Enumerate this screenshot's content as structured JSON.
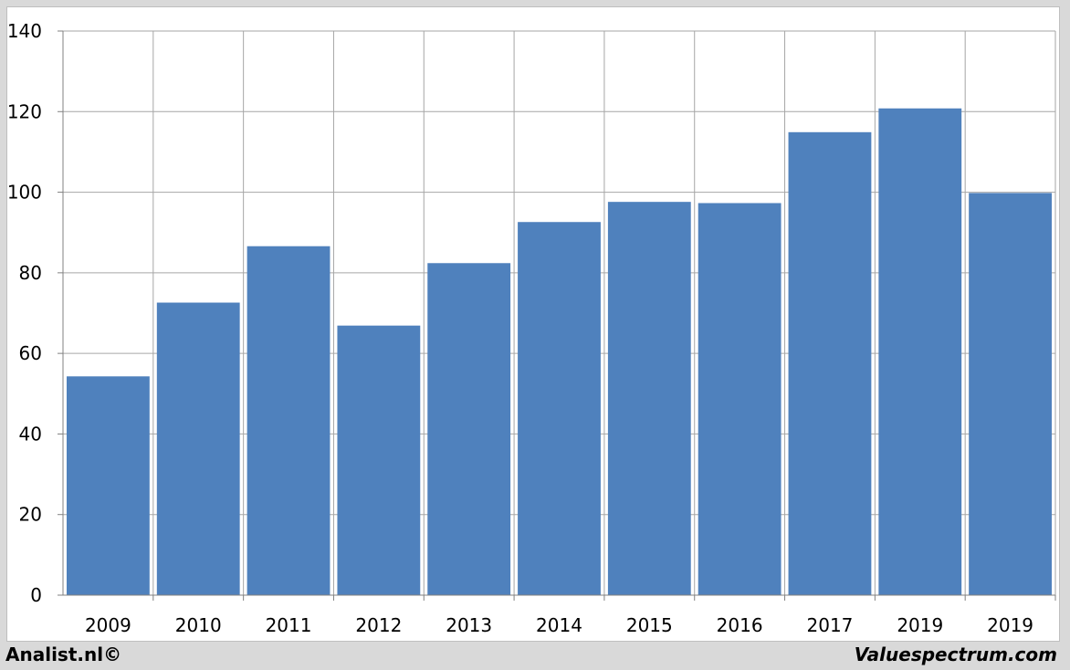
{
  "chart_data": {
    "type": "bar",
    "categories": [
      "2009",
      "2010",
      "2011",
      "2012",
      "2013",
      "2014",
      "2015",
      "2016",
      "2017",
      "2019",
      "2019"
    ],
    "values": [
      54.3,
      72.6,
      86.6,
      66.9,
      82.4,
      92.6,
      97.6,
      97.3,
      114.9,
      120.8,
      99.8
    ],
    "ylim": [
      0,
      140
    ],
    "yticks": [
      0,
      20,
      40,
      60,
      80,
      100,
      120,
      140
    ],
    "grid": true,
    "bar_color": "#4f81bd",
    "grid_color": "#a6a6a6"
  },
  "footer": {
    "left": "Analist.nl©",
    "right": "Valuespectrum.com"
  }
}
